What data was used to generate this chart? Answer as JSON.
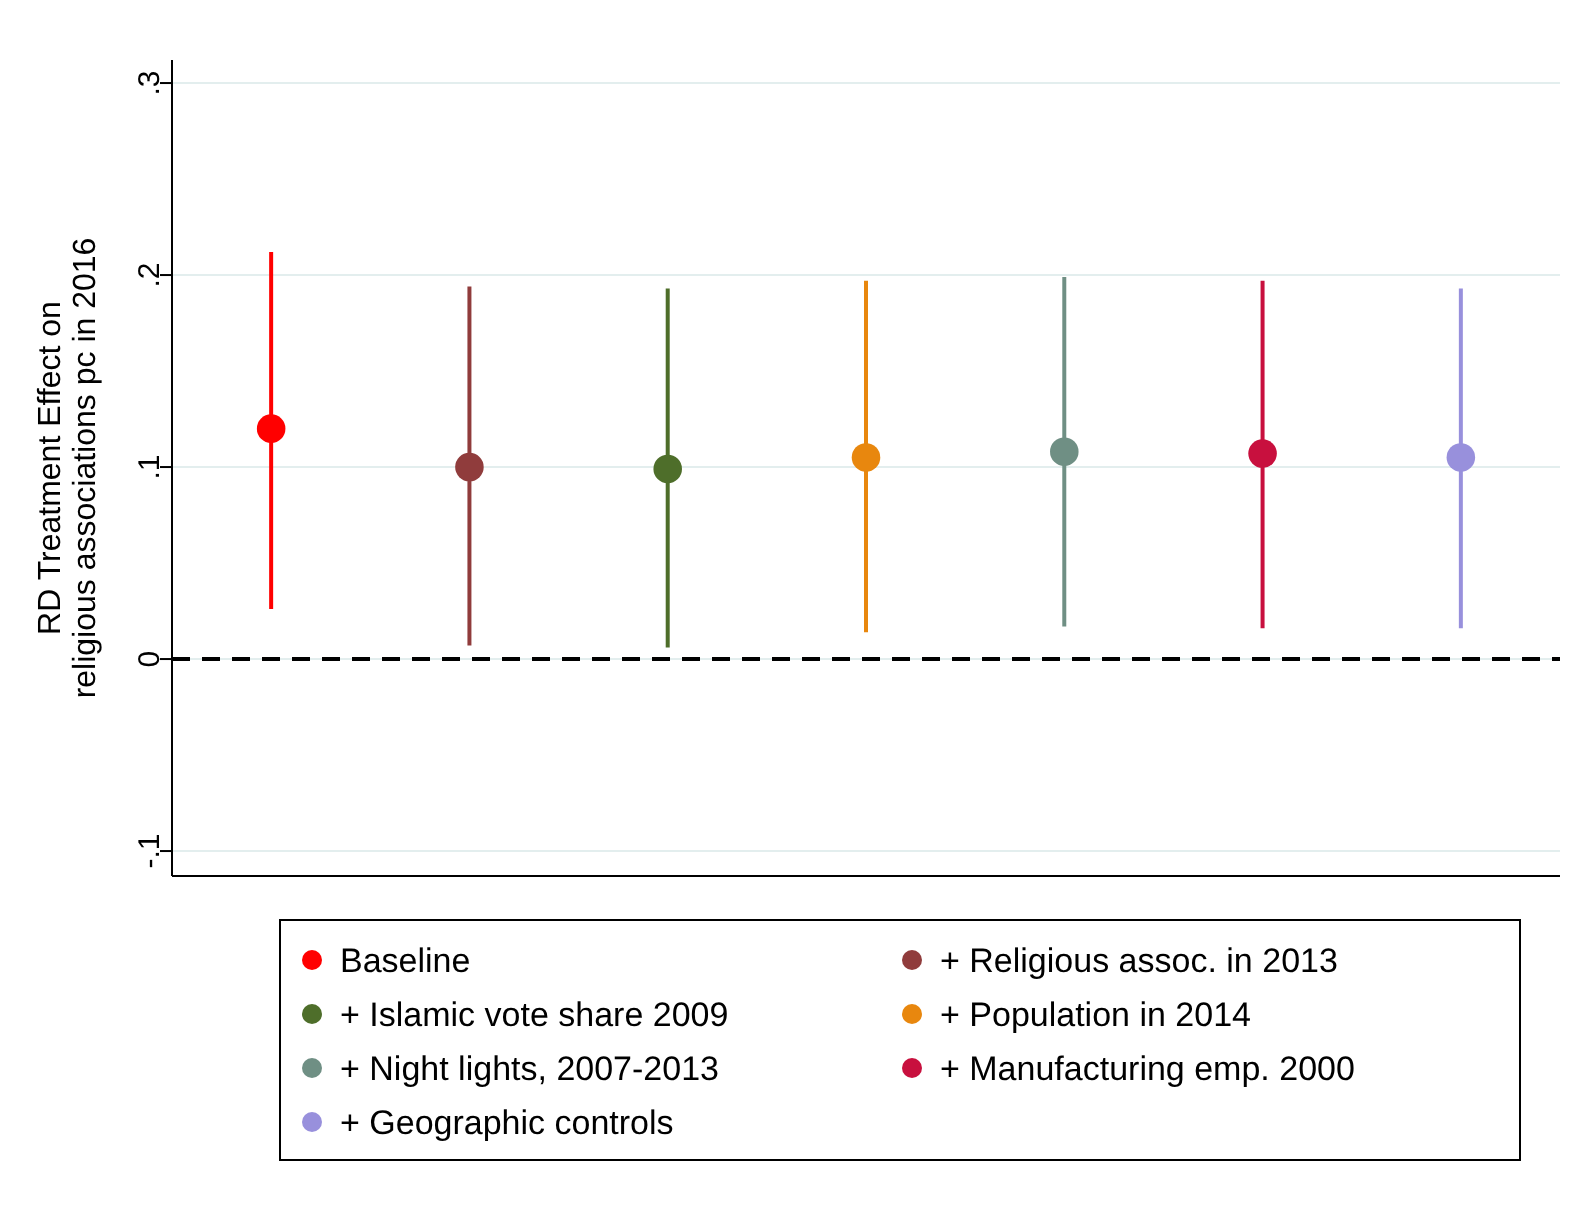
{
  "chart_data": {
    "type": "scatter",
    "ylabel": "RD Treatment Effect on\nreligious associations pc in 2016",
    "categories": [
      null,
      null,
      null,
      null,
      null,
      null,
      null
    ],
    "ylim": [
      -0.113,
      0.312
    ],
    "yticks": [
      {
        "value": -0.1,
        "label": "-.1"
      },
      {
        "value": 0,
        "label": "0"
      },
      {
        "value": 0.1,
        "label": ".1"
      },
      {
        "value": 0.2,
        "label": ".2"
      },
      {
        "value": 0.3,
        "label": ".3"
      }
    ],
    "grid": "y",
    "legend": "bottom",
    "tick_labels": "y",
    "marker": "circle",
    "ref_lines": [
      {
        "axis": "y",
        "value": 0,
        "color": "#000000",
        "line_style": "dashed"
      }
    ],
    "series": [
      {
        "name": "Baseline",
        "color": "#ff0000",
        "values": [
          0.12,
          null,
          null,
          null,
          null,
          null,
          null
        ],
        "errors": [
          [
            0.026,
            0.212
          ],
          null,
          null,
          null,
          null,
          null,
          null
        ]
      },
      {
        "name": "+ Religious assoc. in 2013",
        "color": "#903c3c",
        "values": [
          null,
          0.1,
          null,
          null,
          null,
          null,
          null
        ],
        "errors": [
          null,
          [
            0.007,
            0.194
          ],
          null,
          null,
          null,
          null,
          null
        ]
      },
      {
        "name": "+ Islamic vote share 2009",
        "color": "#4e6e2a",
        "values": [
          null,
          null,
          0.099,
          null,
          null,
          null,
          null
        ],
        "errors": [
          null,
          null,
          [
            0.006,
            0.193
          ],
          null,
          null,
          null,
          null
        ]
      },
      {
        "name": "+ Population in 2014",
        "color": "#e8870e",
        "values": [
          null,
          null,
          null,
          0.105,
          null,
          null,
          null
        ],
        "errors": [
          null,
          null,
          null,
          [
            0.014,
            0.197
          ],
          null,
          null,
          null
        ]
      },
      {
        "name": "+ Night lights, 2007-2013",
        "color": "#6f8f84",
        "values": [
          null,
          null,
          null,
          null,
          0.108,
          null,
          null
        ],
        "errors": [
          null,
          null,
          null,
          null,
          [
            0.017,
            0.199
          ],
          null,
          null
        ]
      },
      {
        "name": "+ Manufacturing emp. 2000",
        "color": "#c8103e",
        "values": [
          null,
          null,
          null,
          null,
          null,
          0.107,
          null
        ],
        "errors": [
          null,
          null,
          null,
          null,
          null,
          [
            0.016,
            0.197
          ],
          null
        ]
      },
      {
        "name": "+ Geographic controls",
        "color": "#9890dc",
        "values": [
          null,
          null,
          null,
          null,
          null,
          null,
          0.105
        ],
        "errors": [
          null,
          null,
          null,
          null,
          null,
          null,
          [
            0.016,
            0.193
          ]
        ]
      }
    ]
  }
}
